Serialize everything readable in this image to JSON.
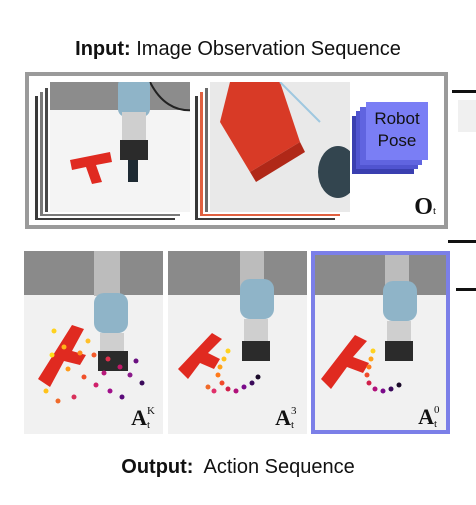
{
  "input_title": {
    "bold": "Input:",
    "rest": " Image Observation Sequence"
  },
  "output_title": {
    "bold": "Output:",
    "rest": "  Action Sequence"
  },
  "robot_pose_box": {
    "line1": "Robot",
    "line2": "Pose"
  },
  "observation_label": {
    "main": "O",
    "sub": "t"
  },
  "action_panels": [
    {
      "main": "A",
      "sup": "K",
      "sub": "t"
    },
    {
      "main": "A",
      "sup": "3",
      "sub": "t"
    },
    {
      "main": "A",
      "sup": "0",
      "sub": "t"
    }
  ],
  "colors": {
    "frame_border": "#9a9a9a",
    "robot_pose_fill": "#7070f0",
    "highlight_border": "#7b7fe8",
    "t_block": "#e02a20",
    "robot_blue": "#8fb4c8"
  }
}
